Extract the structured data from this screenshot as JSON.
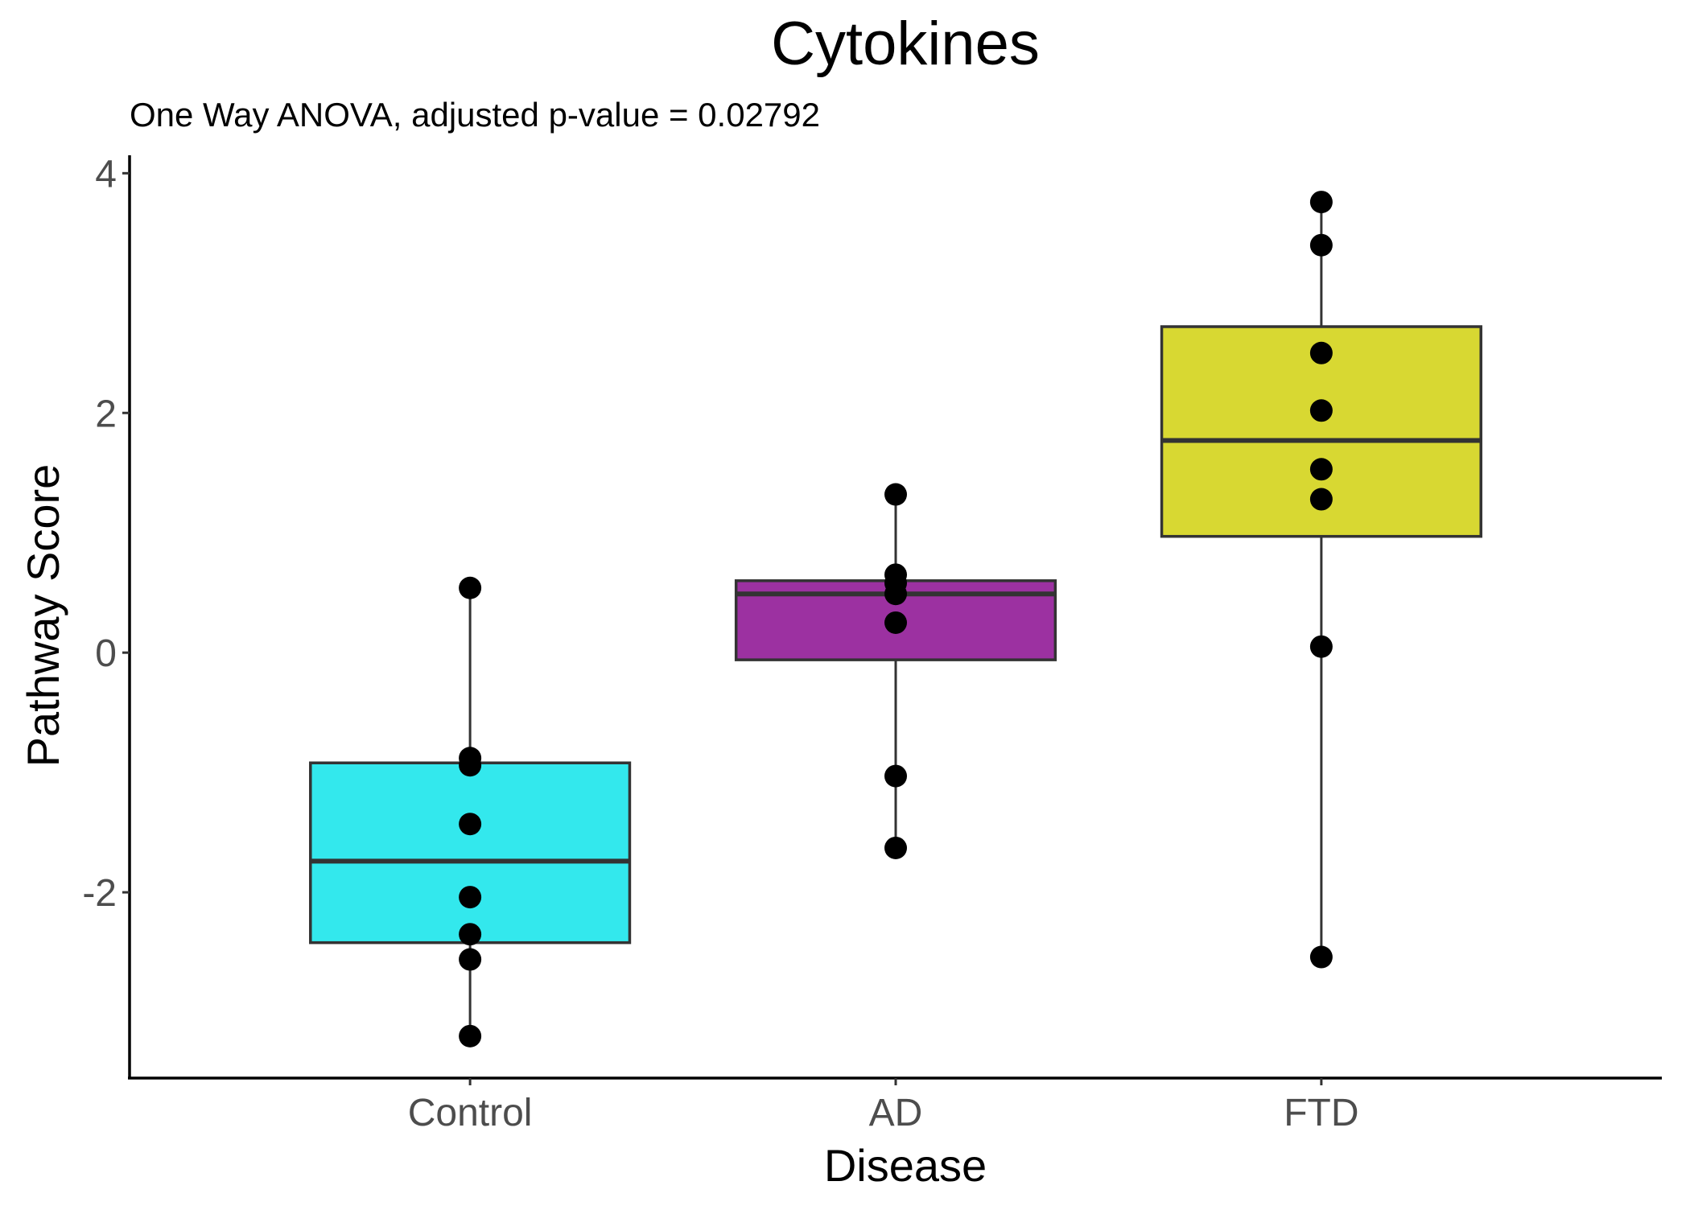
{
  "chart_data": {
    "type": "box",
    "title": "Cytokines",
    "subtitle": "One Way ANOVA, adjusted p-value = 0.02792",
    "xlabel": "Disease",
    "ylabel": "Pathway Score",
    "ylim": [
      -3.55,
      4.15
    ],
    "yticks": [
      -2,
      0,
      2,
      4
    ],
    "ytick_labels": [
      "-2",
      "0",
      "2",
      "4"
    ],
    "grid": false,
    "legend": "none",
    "categories": [
      "Control",
      "AD",
      "FTD"
    ],
    "boxes": [
      {
        "category": "Control",
        "color": "#33e8ed",
        "whisker_low": -3.2,
        "q1": -2.42,
        "median": -1.74,
        "q3": -0.92,
        "whisker_high": 0.54
      },
      {
        "category": "AD",
        "color": "#9c31a1",
        "whisker_low": -1.63,
        "q1": -0.06,
        "median": 0.49,
        "q3": 0.6,
        "whisker_high": 1.32
      },
      {
        "category": "FTD",
        "color": "#d8d832",
        "whisker_low": -2.54,
        "q1": 0.97,
        "median": 1.77,
        "q3": 2.72,
        "whisker_high": 3.76
      }
    ],
    "points": [
      {
        "category": "Control",
        "values": [
          0.54,
          -0.88,
          -0.94,
          -1.43,
          -2.04,
          -2.35,
          -2.56,
          -3.2
        ]
      },
      {
        "category": "AD",
        "values": [
          1.32,
          0.65,
          0.58,
          0.49,
          0.25,
          -1.03,
          -1.63
        ]
      },
      {
        "category": "FTD",
        "values": [
          3.76,
          3.4,
          2.5,
          2.02,
          1.53,
          1.28,
          0.05,
          -2.54
        ]
      }
    ]
  }
}
